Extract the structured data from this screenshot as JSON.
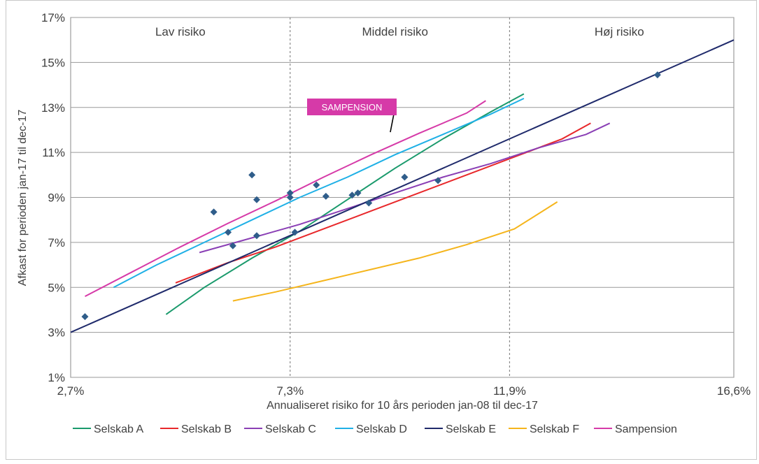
{
  "chart_data": {
    "type": "line",
    "xlabel": "Annualiseret risiko for 10 års perioden jan-08 til dec-17",
    "ylabel": "Afkast for perioden jan-17 til dec-17",
    "xlim": [
      2.7,
      16.6
    ],
    "ylim": [
      1,
      17
    ],
    "xticks": [
      2.7,
      7.3,
      11.9,
      16.6
    ],
    "xtick_labels": [
      "2,7%",
      "7,3%",
      "11,9%",
      "16,6%"
    ],
    "yticks": [
      1,
      3,
      5,
      7,
      9,
      11,
      13,
      15,
      17
    ],
    "ytick_labels": [
      "1%",
      "3%",
      "5%",
      "7%",
      "9%",
      "11%",
      "13%",
      "15%",
      "17%"
    ],
    "grid": true,
    "regions": [
      {
        "label": "Lav risiko",
        "center": 5.0
      },
      {
        "label": "Middel risiko",
        "center": 9.5
      },
      {
        "label": "Høj risiko",
        "center": 14.2
      }
    ],
    "region_dividers": [
      7.3,
      11.9
    ],
    "legend_position": "bottom",
    "series": [
      {
        "name": "Selskab A",
        "color": "#1a9a6c",
        "points": [
          [
            4.7,
            3.8
          ],
          [
            5.5,
            5.0
          ],
          [
            6.5,
            6.3
          ],
          [
            7.5,
            7.5
          ],
          [
            8.5,
            8.9
          ],
          [
            9.5,
            10.3
          ],
          [
            10.5,
            11.6
          ],
          [
            11.5,
            12.8
          ],
          [
            12.2,
            13.6
          ]
        ]
      },
      {
        "name": "Selskab B",
        "color": "#e8282b",
        "points": [
          [
            4.9,
            5.2
          ],
          [
            6.0,
            6.1
          ],
          [
            7.0,
            6.8
          ],
          [
            8.0,
            7.6
          ],
          [
            9.0,
            8.4
          ],
          [
            10.0,
            9.2
          ],
          [
            11.0,
            10.0
          ],
          [
            12.0,
            10.8
          ],
          [
            13.0,
            11.6
          ],
          [
            13.6,
            12.3
          ]
        ]
      },
      {
        "name": "Selskab C",
        "color": "#8a3fb5",
        "points": [
          [
            5.4,
            6.55
          ],
          [
            6.5,
            7.2
          ],
          [
            7.5,
            7.8
          ],
          [
            8.5,
            8.5
          ],
          [
            9.5,
            9.2
          ],
          [
            10.5,
            9.9
          ],
          [
            11.5,
            10.5
          ],
          [
            12.5,
            11.2
          ],
          [
            13.5,
            11.8
          ],
          [
            14.0,
            12.3
          ]
        ]
      },
      {
        "name": "Selskab D",
        "color": "#1fb0e6",
        "points": [
          [
            3.6,
            5.0
          ],
          [
            4.5,
            6.0
          ],
          [
            5.5,
            7.0
          ],
          [
            6.5,
            8.0
          ],
          [
            7.5,
            9.0
          ],
          [
            8.5,
            9.9
          ],
          [
            9.5,
            10.9
          ],
          [
            10.5,
            11.8
          ],
          [
            11.5,
            12.7
          ],
          [
            12.2,
            13.4
          ]
        ]
      },
      {
        "name": "Selskab E",
        "color": "#1f2a6b",
        "points": [
          [
            2.7,
            3.0
          ],
          [
            16.6,
            16.0
          ]
        ]
      },
      {
        "name": "Selskab F",
        "color": "#f5b51c",
        "points": [
          [
            6.1,
            4.4
          ],
          [
            7.0,
            4.8
          ],
          [
            8.0,
            5.3
          ],
          [
            9.0,
            5.8
          ],
          [
            10.0,
            6.3
          ],
          [
            11.0,
            6.9
          ],
          [
            12.0,
            7.6
          ],
          [
            12.9,
            8.8
          ]
        ]
      },
      {
        "name": "Sampension",
        "color": "#d63aa8",
        "points": [
          [
            3.0,
            4.6
          ],
          [
            4.0,
            5.7
          ],
          [
            5.0,
            6.8
          ],
          [
            6.0,
            7.85
          ],
          [
            7.0,
            8.85
          ],
          [
            8.0,
            9.9
          ],
          [
            9.0,
            10.9
          ],
          [
            10.0,
            11.85
          ],
          [
            11.0,
            12.75
          ],
          [
            11.4,
            13.3
          ]
        ]
      }
    ],
    "scatter": {
      "color": "#2f5d8a",
      "points": [
        [
          3.0,
          3.7
        ],
        [
          5.7,
          8.35
        ],
        [
          6.0,
          7.45
        ],
        [
          6.1,
          6.85
        ],
        [
          6.5,
          10.0
        ],
        [
          6.6,
          7.3
        ],
        [
          6.6,
          8.9
        ],
        [
          7.3,
          9.2
        ],
        [
          7.3,
          9.0
        ],
        [
          7.4,
          7.45
        ],
        [
          7.85,
          9.55
        ],
        [
          8.05,
          9.05
        ],
        [
          8.6,
          9.1
        ],
        [
          8.72,
          9.2
        ],
        [
          8.95,
          8.75
        ],
        [
          9.7,
          9.9
        ],
        [
          10.4,
          9.75
        ],
        [
          15.0,
          14.45
        ]
      ]
    },
    "annotations": [
      {
        "text": "SAMPENSION",
        "color": "#d63aa8",
        "target": [
          9.4,
          11.9
        ]
      }
    ]
  }
}
